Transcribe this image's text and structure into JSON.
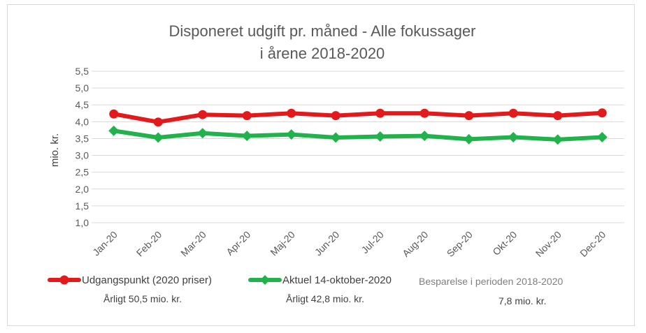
{
  "chart_data": {
    "type": "line",
    "title": [
      "Disponeret udgift pr. måned - Alle fokussager",
      "i årene 2018-2020"
    ],
    "ylabel": "mio. kr.",
    "ylim": [
      1.0,
      5.5
    ],
    "yticks": [
      "1,0",
      "1,5",
      "2,0",
      "2,5",
      "3,0",
      "3,5",
      "4,0",
      "4,5",
      "5,0",
      "5,5"
    ],
    "categories": [
      "Jan-20",
      "Feb-20",
      "Mar-20",
      "Apr-20",
      "Maj-20",
      "Jun-20",
      "Jul-20",
      "Aug-20",
      "Sep-20",
      "Okt-20",
      "Nov-20",
      "Dec-20"
    ],
    "grid": true,
    "series": [
      {
        "name": "Udgangspunkt (2020 priser)",
        "color": "#e31a1c",
        "marker": "circle",
        "values": [
          4.23,
          3.99,
          4.21,
          4.18,
          4.25,
          4.18,
          4.25,
          4.25,
          4.18,
          4.25,
          4.18,
          4.26
        ],
        "note": "Årligt 50,5 mio. kr."
      },
      {
        "name": "Aktuel 14-oktober-2020",
        "color": "#22b24c",
        "marker": "diamond",
        "values": [
          3.73,
          3.53,
          3.66,
          3.58,
          3.62,
          3.53,
          3.56,
          3.58,
          3.48,
          3.54,
          3.47,
          3.54
        ],
        "note": "Årligt 42,8 mio. kr."
      }
    ],
    "savings": {
      "label": "Besparelse i perioden 2018-2020",
      "value": "7,8 mio. kr."
    }
  }
}
